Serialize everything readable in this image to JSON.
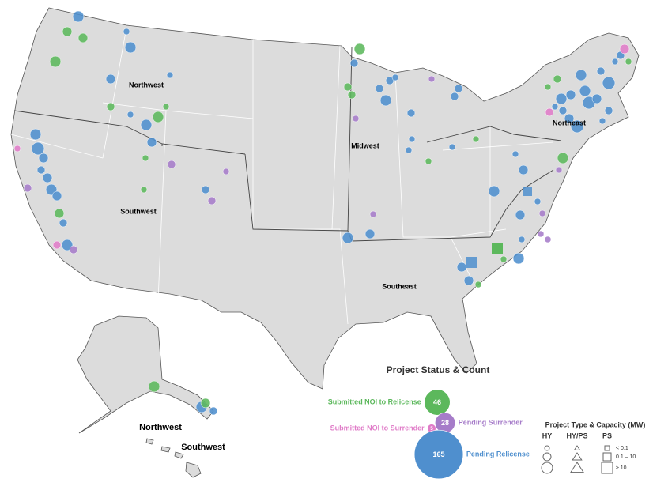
{
  "map": {
    "regions": [
      "Northwest",
      "Southwest",
      "Midwest",
      "Northeast",
      "Southeast"
    ],
    "inset_labels": [
      "Northwest",
      "Southwest"
    ]
  },
  "legend": {
    "title": "Project Status & Count",
    "statuses": [
      {
        "name": "Submitted NOI to Relicense",
        "count": 46,
        "color": "#5cb85c"
      },
      {
        "name": "Pending Surrender",
        "count": 28,
        "color": "#a67cc9"
      },
      {
        "name": "Submitted NOI to Surrender",
        "count": 5,
        "color": "#e07cc8"
      },
      {
        "name": "Pending Relicense",
        "count": 165,
        "color": "#4f8fce"
      }
    ],
    "capacity": {
      "title": "Project Type & Capacity (MW)",
      "types": [
        "HY",
        "HY/PS",
        "PS"
      ],
      "ranges": [
        "< 0.1",
        "0.1 – 10",
        "≥ 10"
      ]
    }
  }
}
